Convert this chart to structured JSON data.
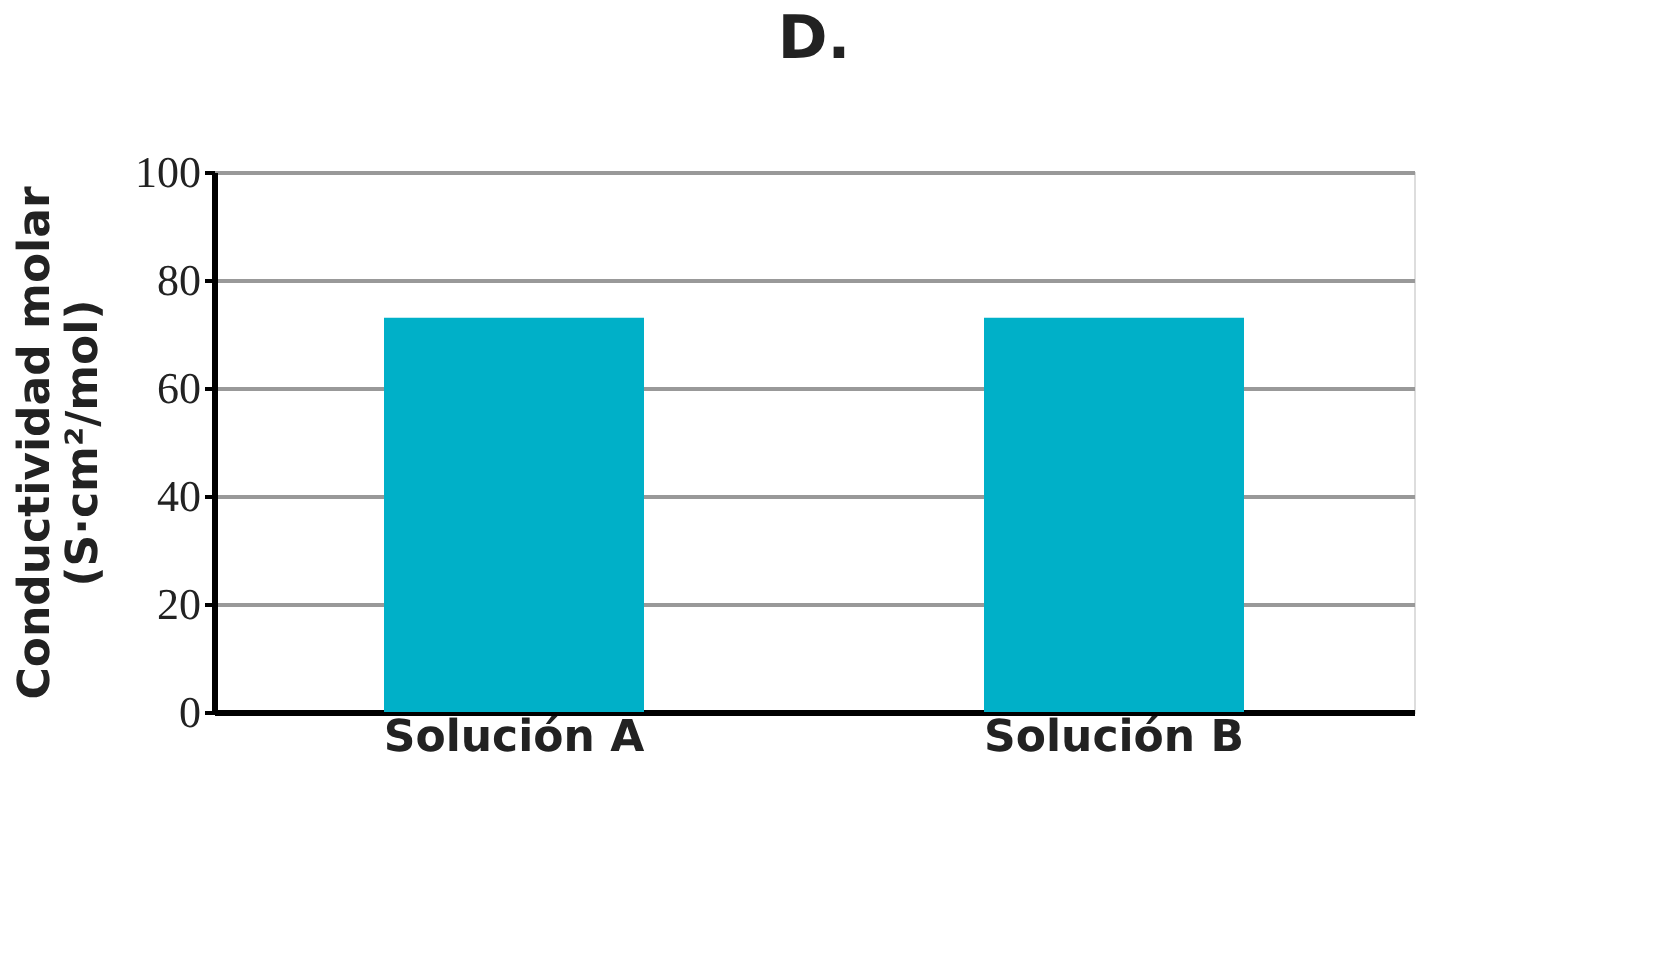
{
  "chart_data": {
    "type": "bar",
    "title": "D.",
    "ylabel": "Conductividad molar\n(S·cm²/mol)",
    "categories": [
      "Solución A",
      "Solución B"
    ],
    "values": [
      73,
      73
    ],
    "color": "#00b0c8",
    "ylim": [
      0,
      100
    ],
    "yticks": [
      0,
      20,
      40,
      60,
      80,
      100
    ],
    "grid": "y"
  }
}
